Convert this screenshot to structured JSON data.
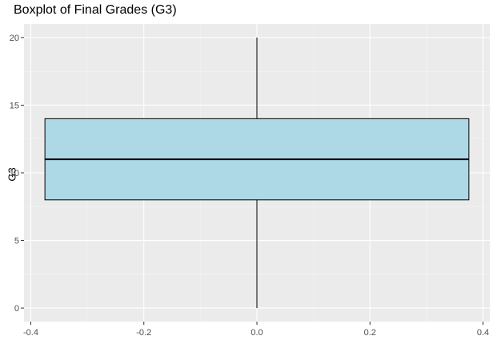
{
  "chart_data": {
    "type": "boxplot",
    "title": "Boxplot of Final Grades (G3)",
    "xlabel": "",
    "ylabel": "G3",
    "xlim": [
      -0.412,
      0.412
    ],
    "ylim": [
      -1,
      21
    ],
    "x_ticks": [
      -0.4,
      -0.2,
      0.0,
      0.2,
      0.4
    ],
    "x_tick_labels": [
      "-0.4",
      "-0.2",
      "0.0",
      "0.2",
      "0.4"
    ],
    "y_ticks": [
      0,
      5,
      10,
      15,
      20
    ],
    "y_tick_labels": [
      "0",
      "5",
      "10",
      "15",
      "20"
    ],
    "box": {
      "x_center": 0,
      "x_range": [
        -0.375,
        0.375
      ],
      "min": 0,
      "q1": 8,
      "median": 11,
      "q3": 14,
      "max": 20
    },
    "grid": true,
    "colors": {
      "panel_background": "#ebebeb",
      "grid_major": "#ffffff",
      "grid_minor": "#f4f4f4",
      "box_fill": "#add8e6",
      "box_outline": "#000000",
      "tick_label": "#4d4d4d"
    }
  }
}
